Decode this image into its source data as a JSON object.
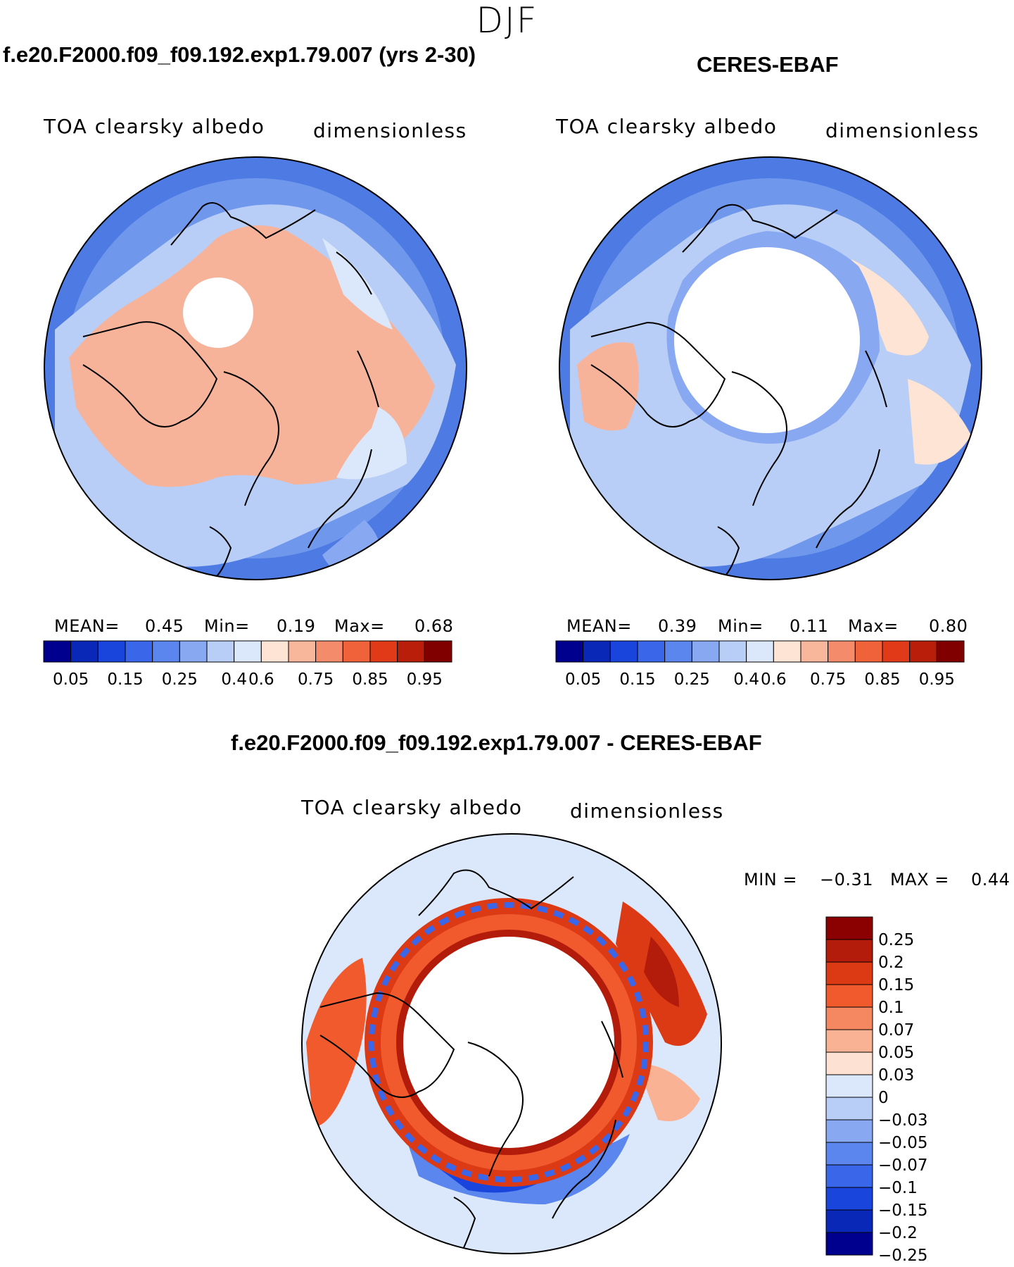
{
  "season": "DJF",
  "panels": [
    {
      "id": "model",
      "title": "f.e20.F2000.f09_f09.192.exp1.79.007 (yrs 2-30)",
      "variable": "TOA clearsky albedo",
      "units": "dimensionless",
      "stats": {
        "mean_label": "MEAN=",
        "mean": "0.45",
        "min_label": "Min=",
        "min": "0.19",
        "max_label": "Max=",
        "max": "0.68"
      }
    },
    {
      "id": "obs",
      "title": "CERES-EBAF",
      "variable": "TOA clearsky albedo",
      "units": "dimensionless",
      "stats": {
        "mean_label": "MEAN=",
        "mean": "0.39",
        "min_label": "Min=",
        "min": "0.11",
        "max_label": "Max=",
        "max": "0.80"
      }
    },
    {
      "id": "diff",
      "title": "f.e20.F2000.f09_f09.192.exp1.79.007 - CERES-EBAF",
      "variable": "TOA clearsky albedo",
      "units": "dimensionless",
      "stats": {
        "min_label": "MIN =",
        "min": "−0.31",
        "max_label": "MAX =",
        "max": "0.44"
      }
    }
  ],
  "chart_data": [
    {
      "type": "heatmap",
      "projection": "north polar stereographic",
      "panel": "model",
      "title": "f.e20.F2000.f09_f09.192.exp1.79.007 (yrs 2-30)",
      "variable": "TOA clearsky albedo",
      "units": "dimensionless",
      "mean": 0.45,
      "min": 0.19,
      "max": 0.68,
      "colorbar": {
        "orientation": "horizontal",
        "tick_labels": [
          "0.05",
          "0.15",
          "0.25",
          "0.4",
          "0.6",
          "0.75",
          "0.85",
          "0.95"
        ],
        "levels": [
          0.05,
          0.1,
          0.15,
          0.2,
          0.25,
          0.3,
          0.4,
          0.5,
          0.6,
          0.7,
          0.75,
          0.8,
          0.85,
          0.9,
          0.95
        ]
      }
    },
    {
      "type": "heatmap",
      "projection": "north polar stereographic",
      "panel": "obs",
      "title": "CERES-EBAF",
      "variable": "TOA clearsky albedo",
      "units": "dimensionless",
      "mean": 0.39,
      "min": 0.11,
      "max": 0.8,
      "colorbar": {
        "orientation": "horizontal",
        "tick_labels": [
          "0.05",
          "0.15",
          "0.25",
          "0.4",
          "0.6",
          "0.75",
          "0.85",
          "0.95"
        ],
        "levels": [
          0.05,
          0.1,
          0.15,
          0.2,
          0.25,
          0.3,
          0.4,
          0.5,
          0.6,
          0.7,
          0.75,
          0.8,
          0.85,
          0.9,
          0.95
        ]
      }
    },
    {
      "type": "heatmap",
      "projection": "north polar stereographic",
      "panel": "diff",
      "title": "f.e20.F2000.f09_f09.192.exp1.79.007 - CERES-EBAF",
      "variable": "TOA clearsky albedo",
      "units": "dimensionless",
      "min": -0.31,
      "max": 0.44,
      "colorbar": {
        "orientation": "vertical",
        "tick_labels": [
          "0.25",
          "0.2",
          "0.15",
          "0.1",
          "0.07",
          "0.05",
          "0.03",
          "0",
          "−0.03",
          "−0.05",
          "−0.07",
          "−0.1",
          "−0.15",
          "−0.2",
          "−0.25"
        ],
        "levels": [
          0.25,
          0.2,
          0.15,
          0.1,
          0.07,
          0.05,
          0.03,
          0,
          -0.03,
          -0.05,
          -0.07,
          -0.1,
          -0.15,
          -0.2,
          -0.25
        ]
      }
    }
  ],
  "colors": {
    "seq_cmap": [
      "#00008f",
      "#0a28b8",
      "#1a45dd",
      "#3a66ea",
      "#5a86ee",
      "#88a8f2",
      "#b8cef6",
      "#dbe8fb",
      "#fde4d4",
      "#f8b69b",
      "#f48c6b",
      "#f06239",
      "#e03a18",
      "#b81e0a",
      "#800000"
    ],
    "div_cmap": [
      "#8b0000",
      "#b31c0a",
      "#db3a14",
      "#f05a2c",
      "#f58860",
      "#f9b394",
      "#fde1d2",
      "#dbe8fb",
      "#b8cef6",
      "#88a8f2",
      "#5a86ee",
      "#3a66ea",
      "#1a45dd",
      "#0a28b8",
      "#00008f"
    ],
    "ocean_blue": "#4d7ae3",
    "land_salmon": "#f7b39a",
    "light_blue": "#b6cdf5"
  }
}
